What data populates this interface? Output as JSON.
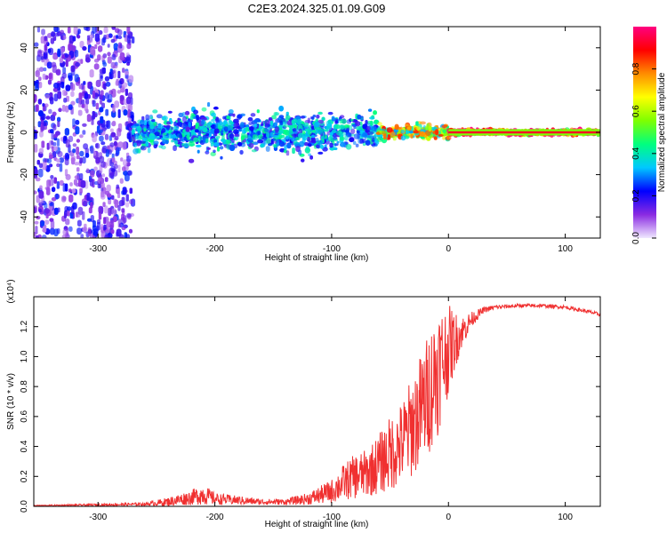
{
  "title": "C2E3.2024.325.01.09.G09",
  "chart_data": [
    {
      "type": "heatmap",
      "xlabel": "Height of straight line (km)",
      "ylabel": "Frequency (Hz)",
      "xlim": [
        -355,
        130
      ],
      "ylim": [
        -50,
        50
      ],
      "xticks": [
        -300,
        -200,
        -100,
        0,
        100
      ],
      "yticks": [
        -40,
        -20,
        0,
        20,
        40
      ],
      "grid": false,
      "colorbar": {
        "label": "Normalized spectral amplitude",
        "range": [
          0,
          1
        ],
        "ticks": [
          "0.0",
          "0.2",
          "0.4",
          "0.6",
          "0.8"
        ],
        "colors": [
          "#f0e8ff",
          "#8a2be2",
          "#0000ff",
          "#00c8ff",
          "#00ff7f",
          "#7fff00",
          "#ffff00",
          "#ff8c00",
          "#ff0000",
          "#ff0080"
        ]
      },
      "regions": [
        {
          "x_from": -355,
          "x_to": -270,
          "freq_spread": 50,
          "amplitude": 0.15
        },
        {
          "x_from": -270,
          "x_to": -60,
          "freq_center": 0,
          "freq_spread": 8,
          "amplitude": 0.3
        },
        {
          "x_from": -60,
          "x_to": 0,
          "freq_center": 0,
          "freq_spread": 3,
          "amplitude": 0.6
        },
        {
          "x_from": 0,
          "x_to": 130,
          "freq_center": 0,
          "freq_spread": 1,
          "amplitude": 0.9
        }
      ]
    },
    {
      "type": "line",
      "xlabel": "Height of straight line (km)",
      "ylabel": "SNR (10 * v/v)",
      "multiplier": "(x10⁴)",
      "xlim": [
        -355,
        130
      ],
      "ylim": [
        0,
        1.4
      ],
      "xticks": [
        -300,
        -200,
        -100,
        0,
        100
      ],
      "yticks": [
        "0.0",
        "0.2",
        "0.4",
        "0.6",
        "0.8",
        "1.0",
        "1.2"
      ],
      "line_color": "#f03030",
      "series": [
        {
          "x": [
            -355,
            -300,
            -260,
            -240,
            -220,
            -210,
            -200,
            -180,
            -160,
            -140,
            -120,
            -100,
            -90,
            -80,
            -70,
            -60,
            -50,
            -40,
            -30,
            -20,
            -10,
            0,
            10,
            20,
            30,
            40,
            60,
            80,
            100,
            120,
            130
          ],
          "y": [
            0.005,
            0.01,
            0.015,
            0.03,
            0.06,
            0.08,
            0.05,
            0.04,
            0.03,
            0.03,
            0.05,
            0.1,
            0.16,
            0.2,
            0.22,
            0.28,
            0.35,
            0.42,
            0.55,
            0.7,
            0.9,
            1.05,
            1.15,
            1.25,
            1.31,
            1.33,
            1.34,
            1.34,
            1.33,
            1.3,
            1.28
          ],
          "noise": [
            0.003,
            0.008,
            0.01,
            0.03,
            0.05,
            0.07,
            0.04,
            0.03,
            0.02,
            0.02,
            0.04,
            0.08,
            0.12,
            0.15,
            0.16,
            0.2,
            0.25,
            0.28,
            0.35,
            0.4,
            0.45,
            0.3,
            0.12,
            0.05,
            0.02,
            0.015,
            0.012,
            0.012,
            0.012,
            0.012,
            0.012
          ]
        }
      ]
    }
  ]
}
